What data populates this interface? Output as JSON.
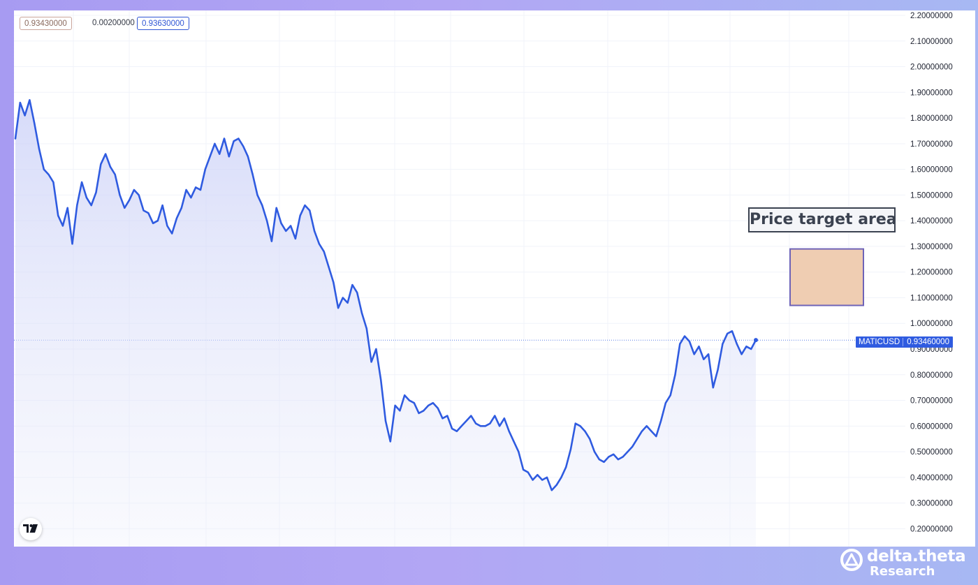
{
  "ohlc": {
    "low": "0.93430000",
    "change": "0.00200000",
    "high": "0.93630000"
  },
  "annotation": {
    "label": "Price target area",
    "box_low": 1.07,
    "box_high": 1.29,
    "box_fill": "#efcdb2",
    "box_border": "#6e63b8"
  },
  "price_tag": {
    "symbol": "MATICUSD",
    "value": "0.93460000"
  },
  "brand": {
    "name": "delta.theta",
    "sub": "Research"
  },
  "colors": {
    "line": "#2f5be0",
    "grid": "#f0f3fa",
    "tag": "#2f5be0"
  },
  "chart_data": {
    "type": "area",
    "symbol": "MATICUSD",
    "title": "",
    "xlabel": "",
    "ylabel": "",
    "ylim": [
      0.17,
      2.23
    ],
    "y_ticks": [
      "0.20000000",
      "0.30000000",
      "0.40000000",
      "0.50000000",
      "0.60000000",
      "0.70000000",
      "0.80000000",
      "0.90000000",
      "1.00000000",
      "1.10000000",
      "1.20000000",
      "1.30000000",
      "1.40000000",
      "1.50000000",
      "1.60000000",
      "1.70000000",
      "1.80000000",
      "1.90000000",
      "2.00000000",
      "2.10000000",
      "2.20000000"
    ],
    "current_price": 0.9346,
    "grid": true,
    "x": [
      0,
      1,
      2,
      3,
      4,
      5,
      6,
      7,
      8,
      9,
      10,
      11,
      12,
      13,
      14,
      15,
      16,
      17,
      18,
      19,
      20,
      21,
      22,
      23,
      24,
      25,
      26,
      27,
      28,
      29,
      30,
      31,
      32,
      33,
      34,
      35,
      36,
      37,
      38,
      39,
      40,
      41,
      42,
      43,
      44,
      45,
      46,
      47,
      48,
      49,
      50,
      51,
      52,
      53,
      54,
      55,
      56,
      57,
      58,
      59,
      60,
      61,
      62,
      63,
      64,
      65,
      66,
      67,
      68,
      69,
      70,
      71,
      72,
      73,
      74,
      75,
      76,
      77,
      78,
      79,
      80,
      81,
      82,
      83,
      84,
      85,
      86,
      87,
      88,
      89,
      90,
      91,
      92,
      93,
      94,
      95,
      96,
      97,
      98,
      99,
      100,
      101,
      102,
      103,
      104,
      105,
      106,
      107,
      108,
      109,
      110,
      111,
      112,
      113,
      114,
      115,
      116,
      117,
      118,
      119,
      120,
      121,
      122,
      123,
      124,
      125,
      126,
      127,
      128,
      129,
      130,
      131,
      132,
      133,
      134,
      135,
      136,
      137,
      138,
      139,
      140,
      141,
      142,
      143,
      144,
      145,
      146,
      147,
      148,
      149,
      150,
      151,
      152,
      153,
      154,
      155,
      156
    ],
    "values": [
      1.72,
      1.86,
      1.81,
      1.87,
      1.78,
      1.68,
      1.6,
      1.58,
      1.55,
      1.42,
      1.38,
      1.45,
      1.31,
      1.46,
      1.55,
      1.49,
      1.46,
      1.51,
      1.62,
      1.66,
      1.61,
      1.58,
      1.5,
      1.45,
      1.48,
      1.52,
      1.5,
      1.44,
      1.43,
      1.39,
      1.4,
      1.46,
      1.38,
      1.35,
      1.41,
      1.45,
      1.52,
      1.49,
      1.53,
      1.52,
      1.6,
      1.65,
      1.7,
      1.66,
      1.72,
      1.65,
      1.71,
      1.72,
      1.69,
      1.65,
      1.58,
      1.5,
      1.46,
      1.4,
      1.32,
      1.45,
      1.39,
      1.36,
      1.38,
      1.33,
      1.42,
      1.46,
      1.44,
      1.36,
      1.31,
      1.28,
      1.22,
      1.16,
      1.06,
      1.1,
      1.08,
      1.15,
      1.12,
      1.04,
      0.98,
      0.85,
      0.9,
      0.78,
      0.62,
      0.54,
      0.68,
      0.66,
      0.72,
      0.7,
      0.69,
      0.65,
      0.66,
      0.68,
      0.69,
      0.67,
      0.63,
      0.64,
      0.59,
      0.58,
      0.6,
      0.62,
      0.64,
      0.61,
      0.6,
      0.6,
      0.61,
      0.64,
      0.6,
      0.63,
      0.58,
      0.54,
      0.5,
      0.43,
      0.42,
      0.39,
      0.41,
      0.39,
      0.4,
      0.35,
      0.37,
      0.4,
      0.44,
      0.51,
      0.61,
      0.6,
      0.58,
      0.55,
      0.5,
      0.47,
      0.46,
      0.48,
      0.49,
      0.47,
      0.48,
      0.5,
      0.52,
      0.55,
      0.58,
      0.6,
      0.58,
      0.56,
      0.62,
      0.69,
      0.72,
      0.8,
      0.92,
      0.95,
      0.93,
      0.88,
      0.91,
      0.86,
      0.88,
      0.75,
      0.82,
      0.92,
      0.96,
      0.97,
      0.92,
      0.88,
      0.91,
      0.9,
      0.935
    ]
  }
}
